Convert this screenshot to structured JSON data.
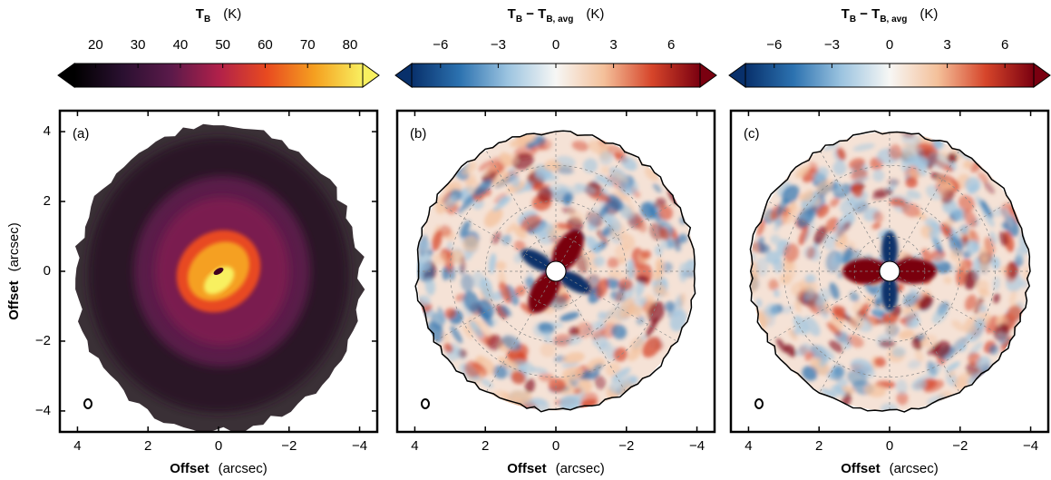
{
  "chart_data": [
    {
      "type": "image",
      "panel_label": "(a)",
      "colorbar": {
        "label_parts": [
          {
            "text": "T"
          },
          {
            "text": "B",
            "sub": true
          }
        ],
        "unit": "(K)",
        "clim": [
          15,
          83
        ],
        "ticks": [
          20,
          30,
          40,
          50,
          60,
          70,
          80
        ],
        "colors": [
          "#000000",
          "#2a1030",
          "#5a1a4a",
          "#b0204a",
          "#e84a20",
          "#f5a020",
          "#f8f060"
        ]
      },
      "xlim": [
        4.5,
        -4.5
      ],
      "ylim": [
        -4.6,
        4.6
      ],
      "xticks": [
        4,
        2,
        0,
        {
          "value": -2,
          "label": "−2"
        },
        {
          "value": -4,
          "label": "−4"
        }
      ],
      "yticks": [
        {
          "value": -4,
          "label": "−4"
        },
        {
          "value": -2,
          "label": "−2"
        },
        0,
        2,
        4
      ],
      "xlabel": "Offset",
      "xunit": "(arcsec)",
      "ylabel": "Offset",
      "yunit": "(arcsec)"
    },
    {
      "type": "image",
      "panel_label": "(b)",
      "colorbar": {
        "label_parts": [
          {
            "text": "T"
          },
          {
            "text": "B",
            "sub": true
          },
          {
            "text": " − T"
          },
          {
            "text": "B, avg",
            "sub": true
          }
        ],
        "unit": "(K)",
        "clim": [
          -7.5,
          7.5
        ],
        "ticks": [
          {
            "value": -6,
            "label": "−6"
          },
          {
            "value": -3,
            "label": "−3"
          },
          0,
          3,
          6
        ],
        "colors": [
          "#08306b",
          "#2c72b0",
          "#9cc4e0",
          "#f7f7f5",
          "#f4c09a",
          "#d6452a",
          "#7a0010"
        ]
      },
      "xlim": [
        4.5,
        -4.5
      ],
      "ylim": [
        -4.6,
        4.6
      ],
      "xticks": [
        4,
        2,
        0,
        {
          "value": -2,
          "label": "−2"
        },
        {
          "value": -4,
          "label": "−4"
        }
      ],
      "xlabel": "Offset",
      "xunit": "(arcsec)"
    },
    {
      "type": "image",
      "panel_label": "(c)",
      "colorbar": {
        "label_parts": [
          {
            "text": "T"
          },
          {
            "text": "B",
            "sub": true
          },
          {
            "text": " − T"
          },
          {
            "text": "B, avg",
            "sub": true
          }
        ],
        "unit": "(K)",
        "clim": [
          -7.5,
          7.5
        ],
        "ticks": [
          {
            "value": -6,
            "label": "−6"
          },
          {
            "value": -3,
            "label": "−3"
          },
          0,
          3,
          6
        ],
        "colors": [
          "#08306b",
          "#2c72b0",
          "#9cc4e0",
          "#f7f7f5",
          "#f4c09a",
          "#d6452a",
          "#7a0010"
        ]
      },
      "xlim": [
        4.5,
        -4.5
      ],
      "ylim": [
        -4.6,
        4.6
      ],
      "xticks": [
        4,
        2,
        0,
        {
          "value": -2,
          "label": "−2"
        },
        {
          "value": -4,
          "label": "−4"
        }
      ],
      "xlabel": "Offset",
      "xunit": "(arcsec)"
    }
  ]
}
